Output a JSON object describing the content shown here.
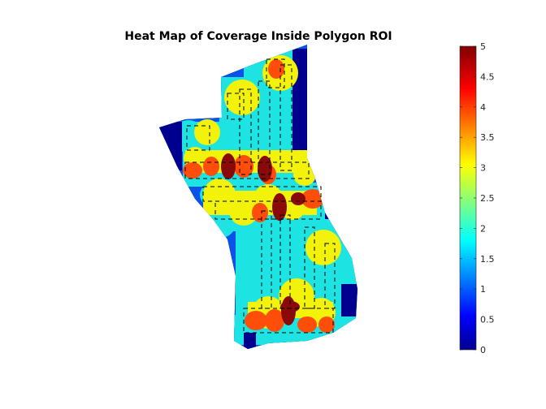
{
  "chart_data": {
    "type": "heatmap",
    "title": "Heat Map of Coverage Inside Polygon ROI",
    "xlabel": "",
    "ylabel": "",
    "colormap": "jet",
    "colorbar": {
      "range": [
        0,
        5
      ],
      "tick_labels": [
        "0",
        "0.5",
        "1",
        "1.5",
        "2",
        "2.5",
        "3",
        "3.5",
        "4",
        "4.5",
        "5"
      ]
    },
    "axes_visible": false,
    "value_colors": {
      "1": "#0a52e8",
      "2": "#1ee3e3",
      "3": "#f2f20a",
      "4": "#ff4d0a",
      "5": "#8a0a0a"
    }
  }
}
